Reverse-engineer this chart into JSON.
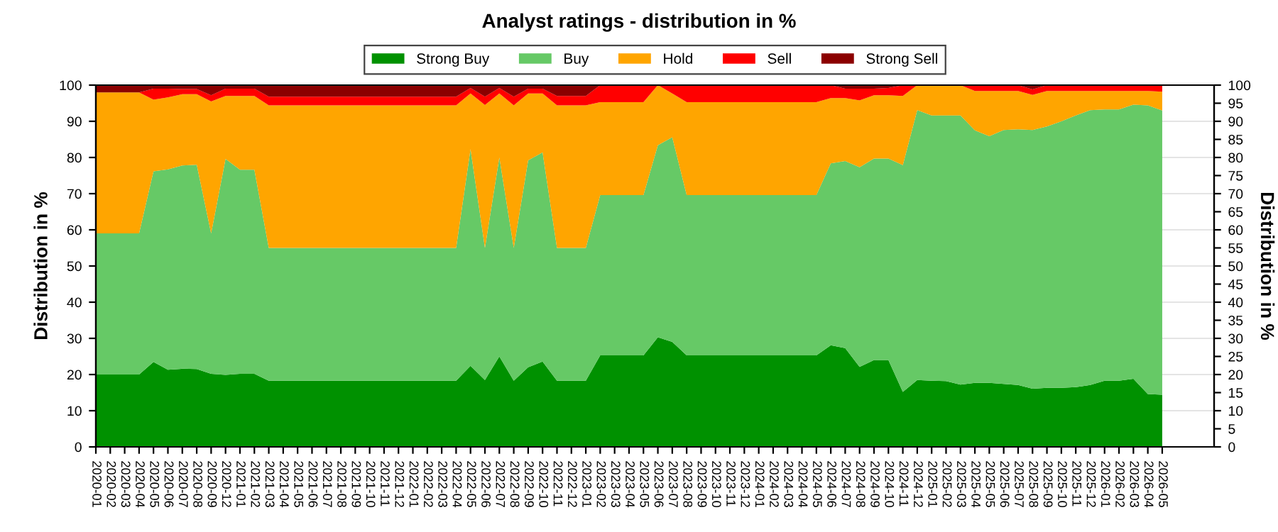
{
  "chart_data": {
    "type": "area",
    "stacked": true,
    "title": "Analyst ratings - distribution in %",
    "ylabel": "Distribution in %",
    "y2label": "Distribution in %",
    "categories": [
      "2020-01",
      "2020-02",
      "2020-03",
      "2020-04",
      "2020-05",
      "2020-06",
      "2020-07",
      "2020-08",
      "2020-09",
      "2020-12",
      "2021-01",
      "2021-02",
      "2021-03",
      "2021-04",
      "2021-05",
      "2021-06",
      "2021-07",
      "2021-08",
      "2021-09",
      "2021-10",
      "2021-11",
      "2021-12",
      "2022-01",
      "2022-02",
      "2022-03",
      "2022-04",
      "2022-05",
      "2022-06",
      "2022-07",
      "2022-08",
      "2022-09",
      "2022-10",
      "2022-11",
      "2022-12",
      "2023-01",
      "2023-02",
      "2023-03",
      "2023-04",
      "2023-05",
      "2023-06",
      "2023-07",
      "2023-08",
      "2023-09",
      "2023-10",
      "2023-11",
      "2023-12",
      "2024-01",
      "2024-02",
      "2024-03",
      "2024-04",
      "2024-05",
      "2024-06",
      "2024-07",
      "2024-08",
      "2024-09",
      "2024-10",
      "2024-11",
      "2024-12",
      "2025-01",
      "2025-02",
      "2025-03",
      "2025-04",
      "2025-05",
      "2025-06",
      "2025-07",
      "2025-08",
      "2025-09",
      "2025-10",
      "2025-11",
      "2025-12",
      "2026-01",
      "2026-02",
      "2026-03",
      "2026-04",
      "2026-05"
    ],
    "series": [
      {
        "name": "Strong Buy",
        "color": "#009100",
        "values": [
          20,
          20,
          20,
          20,
          23.5,
          21.3,
          21.6,
          21.5,
          20.2,
          19.9,
          20.2,
          20.2,
          18.3,
          18.3,
          18.3,
          18.3,
          18.3,
          18.3,
          18.3,
          18.3,
          18.3,
          18.3,
          18.3,
          18.3,
          18.3,
          18.3,
          22.4,
          18.5,
          25,
          18.3,
          22,
          23.6,
          18.3,
          18.3,
          18.3,
          25.3,
          25.3,
          25.3,
          25.3,
          30.3,
          29,
          25.3,
          25.3,
          25.3,
          25.3,
          25.3,
          25.3,
          25.3,
          25.3,
          25.3,
          25.3,
          28.1,
          27.3,
          22.1,
          24,
          24,
          15.2,
          18.5,
          18.3,
          18.2,
          17.2,
          17.7,
          17.7,
          17.4,
          17.1,
          16.1,
          16.3,
          16.3,
          16.5,
          17.1,
          18.3,
          18.3,
          18.8,
          14.6,
          14.4
        ]
      },
      {
        "name": "Buy",
        "color": "#66c966",
        "values": [
          39,
          39,
          39,
          39,
          52.7,
          55.4,
          56.2,
          56.5,
          38.8,
          59.7,
          56.4,
          56.4,
          36.7,
          36.7,
          36.7,
          36.7,
          36.7,
          36.7,
          36.7,
          36.7,
          36.7,
          36.7,
          36.7,
          36.7,
          36.7,
          36.7,
          59.9,
          36.5,
          55,
          36.7,
          57.2,
          57.8,
          36.7,
          36.7,
          36.7,
          44.3,
          44.3,
          44.3,
          44.3,
          53.1,
          56.6,
          44.3,
          44.3,
          44.3,
          44.3,
          44.3,
          44.3,
          44.3,
          44.3,
          44.3,
          44.3,
          50.3,
          51.7,
          55.2,
          55.7,
          55.7,
          62.7,
          74.6,
          73.3,
          73.4,
          74.4,
          69.8,
          68.2,
          70.2,
          70.7,
          71.5,
          72.3,
          73.7,
          75.1,
          76,
          75,
          75,
          75.8,
          79.8,
          78.6
        ]
      },
      {
        "name": "Hold",
        "color": "#ffa500",
        "values": [
          39,
          39,
          39,
          39,
          19.8,
          19.9,
          19.7,
          19.5,
          36.5,
          17.4,
          20.4,
          20.4,
          39.4,
          39.4,
          39.4,
          39.4,
          39.4,
          39.4,
          39.4,
          39.4,
          39.4,
          39.4,
          39.4,
          39.4,
          39.4,
          39.4,
          15.4,
          39.5,
          17.7,
          39.4,
          18.5,
          16.3,
          39.4,
          39.4,
          39.4,
          25.7,
          25.7,
          25.7,
          25.7,
          16.6,
          12.1,
          25.7,
          25.7,
          25.7,
          25.7,
          25.7,
          25.7,
          25.7,
          25.7,
          25.7,
          25.7,
          18,
          17.4,
          18.5,
          17.5,
          17.5,
          19.1,
          6.9,
          8.4,
          8.4,
          8.4,
          10.9,
          12.5,
          10.8,
          10.6,
          9.7,
          9.8,
          8.4,
          6.8,
          5.3,
          5.1,
          5.1,
          3.8,
          4,
          5.2
        ]
      },
      {
        "name": "Sell",
        "color": "#ff0000",
        "values": [
          0,
          0,
          0,
          0,
          3,
          2.4,
          1.4,
          1.4,
          1.7,
          2,
          2,
          2,
          2.4,
          2.4,
          2.4,
          2.4,
          2.4,
          2.4,
          2.4,
          2.4,
          2.4,
          2.4,
          2.4,
          2.4,
          2.4,
          2.4,
          1.5,
          2.3,
          1.5,
          2.4,
          1.3,
          1.3,
          2.6,
          2.6,
          2.6,
          4.7,
          4.7,
          4.7,
          4.7,
          0,
          2.3,
          4.7,
          4.7,
          4.7,
          4.7,
          4.7,
          4.7,
          4.7,
          4.7,
          4.7,
          4.7,
          3.6,
          2.6,
          3.2,
          1.8,
          2,
          3,
          0,
          0,
          0,
          0,
          1.6,
          1.6,
          1.6,
          1.6,
          1.5,
          1.6,
          1.6,
          1.6,
          1.6,
          1.6,
          1.6,
          1.6,
          1.6,
          1.8
        ]
      },
      {
        "name": "Strong Sell",
        "color": "#8b0000",
        "values": [
          2,
          2,
          2,
          2,
          1,
          1,
          1.1,
          1.1,
          2.8,
          1,
          1,
          1,
          3.2,
          3.2,
          3.2,
          3.2,
          3.2,
          3.2,
          3.2,
          3.2,
          3.2,
          3.2,
          3.2,
          3.2,
          3.2,
          3.2,
          0.8,
          3.2,
          0.8,
          3.2,
          1,
          1,
          3,
          3,
          3,
          0,
          0,
          0,
          0,
          0,
          0,
          0,
          0,
          0,
          0,
          0,
          0,
          0,
          0,
          0,
          0,
          0,
          1,
          1,
          1,
          0.8,
          0,
          0,
          0,
          0,
          0,
          0,
          0,
          0,
          0,
          1.2,
          0,
          0,
          0,
          0,
          0,
          0,
          0,
          0,
          0
        ]
      }
    ],
    "ylim": [
      0,
      100
    ],
    "yticks": [
      0,
      10,
      20,
      30,
      40,
      50,
      60,
      70,
      80,
      90,
      100
    ],
    "y2lim": [
      0,
      100
    ],
    "y2ticks": [
      0,
      5,
      10,
      15,
      20,
      25,
      30,
      35,
      40,
      45,
      50,
      55,
      60,
      65,
      70,
      75,
      80,
      85,
      90,
      95,
      100
    ],
    "grid": "y",
    "legend": "top"
  }
}
